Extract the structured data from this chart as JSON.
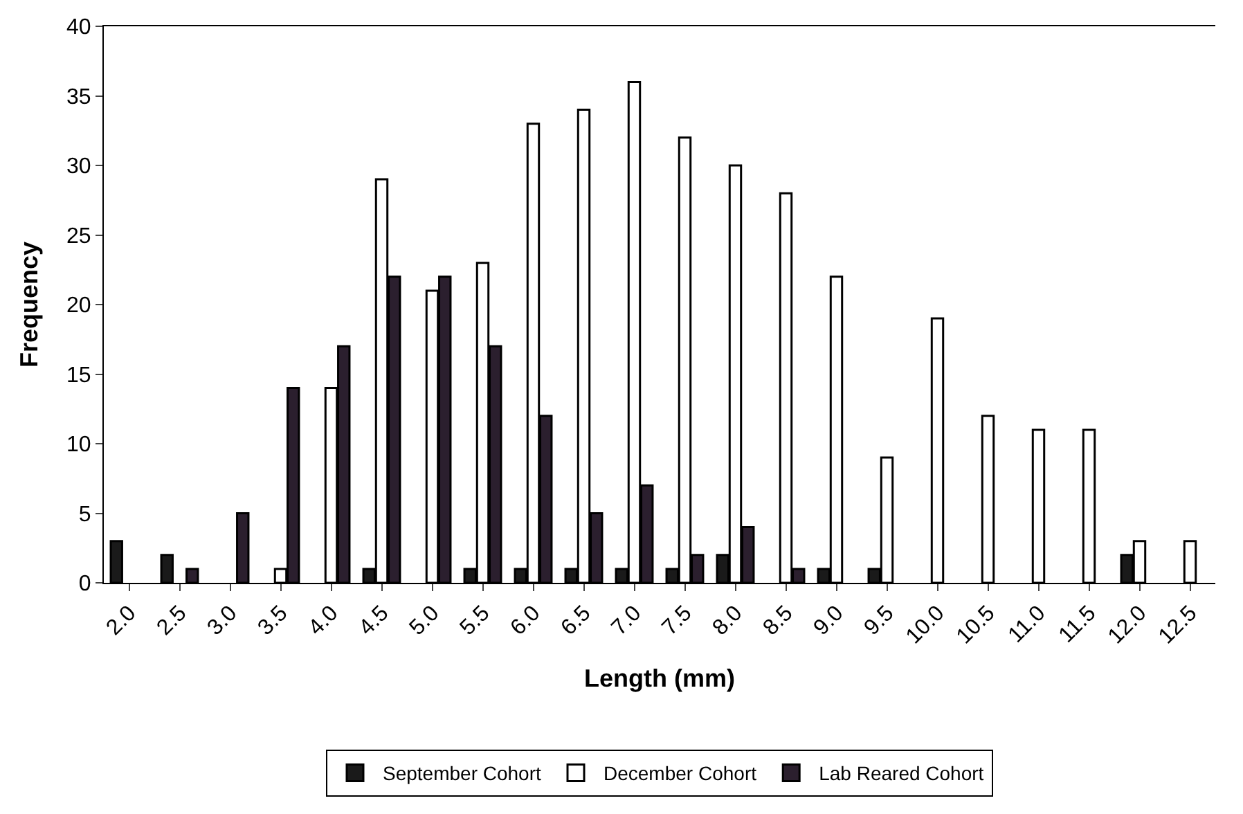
{
  "chart_data": {
    "type": "bar",
    "xlabel": "Length (mm)",
    "ylabel": "Frequency",
    "categories": [
      "2.0",
      "2.5",
      "3.0",
      "3.5",
      "4.0",
      "4.5",
      "5.0",
      "5.5",
      "6.0",
      "6.5",
      "7.0",
      "7.5",
      "8.0",
      "8.5",
      "9.0",
      "9.5",
      "10.0",
      "10.5",
      "11.0",
      "11.5",
      "12.0",
      "12.5"
    ],
    "series": [
      {
        "name": "September Cohort",
        "color": "#1a1a1a",
        "values": [
          3,
          2,
          0,
          0,
          0,
          1,
          0,
          1,
          1,
          1,
          1,
          1,
          2,
          0,
          1,
          1,
          0,
          0,
          0,
          0,
          2,
          0
        ]
      },
      {
        "name": "December Cohort",
        "color": "#ffffff",
        "values": [
          0,
          0,
          0,
          1,
          14,
          29,
          21,
          23,
          33,
          34,
          36,
          32,
          30,
          28,
          22,
          9,
          19,
          12,
          11,
          11,
          3,
          3
        ]
      },
      {
        "name": "Lab Reared Cohort",
        "color": "#2b1f2e",
        "values": [
          0,
          1,
          5,
          14,
          17,
          22,
          22,
          17,
          12,
          5,
          7,
          2,
          4,
          1,
          0,
          0,
          0,
          0,
          0,
          0,
          0,
          0
        ]
      }
    ],
    "ylim": [
      0,
      40
    ],
    "yticks": [
      0,
      5,
      10,
      15,
      20,
      25,
      30,
      35,
      40
    ],
    "grid": false,
    "legend": "bottom"
  }
}
